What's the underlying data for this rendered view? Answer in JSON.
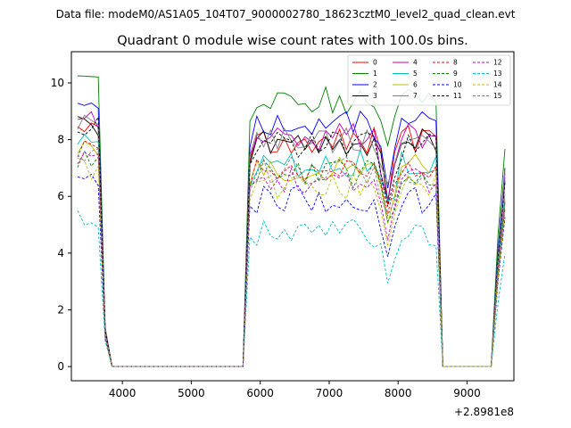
{
  "figure": {
    "suptitle": "Data file: modeM0/AS1A05_104T07_9000002780_18623cztM0_level2_quad_clean.evt",
    "title": "Quadrant 0 module wise count rates with 100.0s bins.",
    "x_offset_label": "+2.8981e8"
  },
  "chart_data": {
    "type": "line",
    "title": "Quadrant 0 module wise count rates with 100.0s bins.",
    "xlabel": "",
    "ylabel": "",
    "x_offset": 289810000,
    "xlim": [
      3260,
      9680
    ],
    "ylim": [
      -0.5,
      11.1
    ],
    "xticks": [
      4000,
      5000,
      6000,
      7000,
      8000,
      9000
    ],
    "xtick_labels": [
      "4000",
      "5000",
      "6000",
      "7000",
      "8000",
      "9000"
    ],
    "yticks": [
      0,
      2,
      4,
      6,
      8,
      10
    ],
    "ytick_labels": [
      "0",
      "2",
      "4",
      "6",
      "8",
      "10"
    ],
    "legend_position": "upper-right",
    "gaps": [
      [
        3850,
        5750
      ],
      [
        8650,
        9350
      ]
    ],
    "segments": [
      {
        "start": 3350,
        "end": 3850
      },
      {
        "start": 5750,
        "end": 8650
      },
      {
        "start": 9350,
        "end": 9550
      }
    ],
    "series": [
      {
        "name": "0",
        "color": "#ff0000",
        "dash": "solid",
        "base": 8.6,
        "seed": 1
      },
      {
        "name": "1",
        "color": "#008000",
        "dash": "solid",
        "base": 10.0,
        "seed": 2
      },
      {
        "name": "2",
        "color": "#0000ff",
        "dash": "solid",
        "base": 9.1,
        "seed": 3
      },
      {
        "name": "3",
        "color": "#000000",
        "dash": "solid",
        "base": 8.5,
        "seed": 4
      },
      {
        "name": "4",
        "color": "#bf00bf",
        "dash": "solid",
        "base": 8.7,
        "seed": 5
      },
      {
        "name": "5",
        "color": "#00bfbf",
        "dash": "solid",
        "base": 7.8,
        "seed": 6
      },
      {
        "name": "6",
        "color": "#bfbf00",
        "dash": "solid",
        "base": 7.6,
        "seed": 7
      },
      {
        "name": "7",
        "color": "#808080",
        "dash": "solid",
        "base": 8.6,
        "seed": 8
      },
      {
        "name": "8",
        "color": "#ff0000",
        "dash": "dashed",
        "base": 7.6,
        "seed": 9
      },
      {
        "name": "9",
        "color": "#008000",
        "dash": "dashed",
        "base": 7.4,
        "seed": 10
      },
      {
        "name": "10",
        "color": "#0000ff",
        "dash": "dashed",
        "base": 6.5,
        "seed": 11
      },
      {
        "name": "11",
        "color": "#000000",
        "dash": "dashed",
        "base": 8.4,
        "seed": 12
      },
      {
        "name": "12",
        "color": "#bf00bf",
        "dash": "dashed",
        "base": 7.2,
        "seed": 13
      },
      {
        "name": "13",
        "color": "#00bfbf",
        "dash": "dashed",
        "base": 5.3,
        "seed": 14
      },
      {
        "name": "14",
        "color": "#bfbf00",
        "dash": "dashed",
        "base": 7.0,
        "seed": 15
      },
      {
        "name": "15",
        "color": "#808080",
        "dash": "dashed",
        "base": 7.5,
        "seed": 16
      }
    ]
  }
}
